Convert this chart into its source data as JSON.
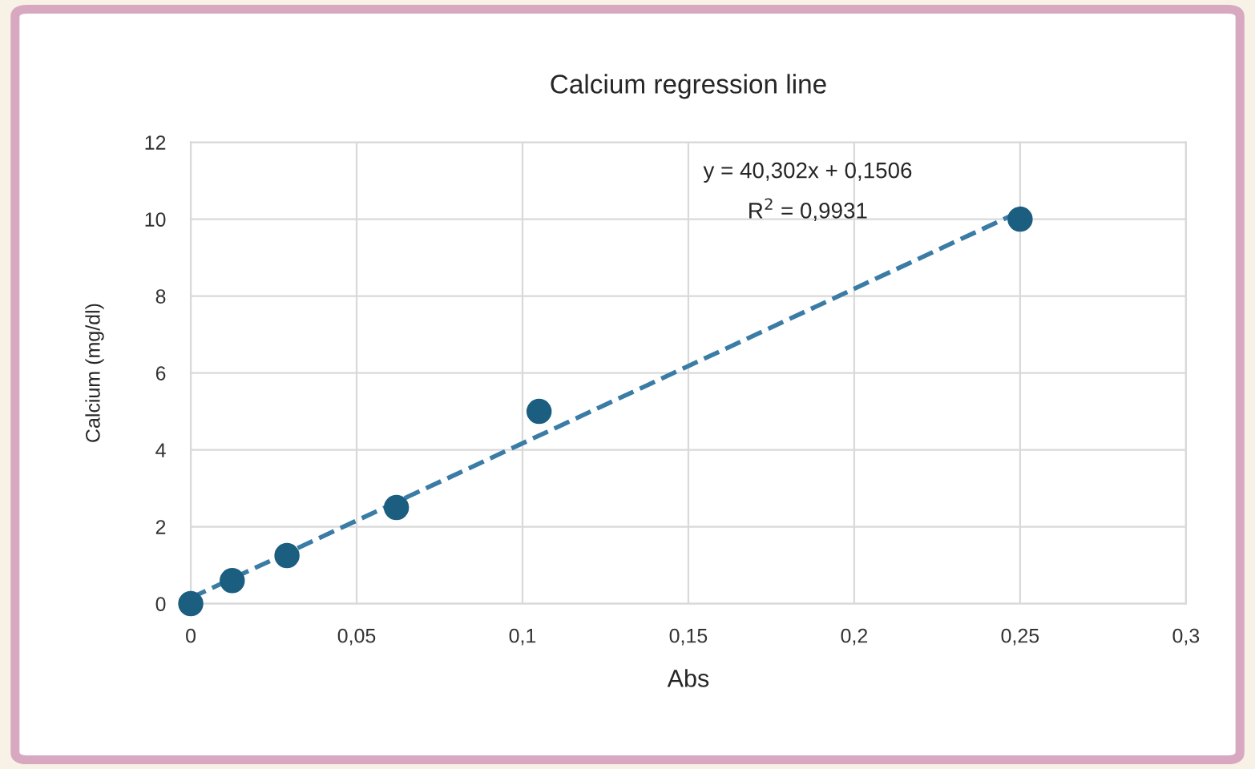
{
  "chart_data": {
    "type": "scatter",
    "title": "Calcium regression line",
    "xlabel": "Abs",
    "ylabel": "Calcium (mg/dl)",
    "series": [
      {
        "color": "#1b5e80",
        "x": [
          0,
          0.0125,
          0.029,
          0.062,
          0.105,
          0.25
        ],
        "values": [
          0,
          0.6,
          1.25,
          2.5,
          5,
          10
        ],
        "marker": "circle"
      },
      {
        "type": "line",
        "color": "#3a7ca5",
        "x": [
          0,
          0.25
        ],
        "values": [
          0.15,
          10.2
        ],
        "line_style": "dashed",
        "marker": "none"
      }
    ],
    "xlim": [
      0,
      0.3
    ],
    "xticks": [
      0,
      {
        "value": 0.05,
        "label": "0,05"
      },
      {
        "value": 0.1,
        "label": "0,1"
      },
      {
        "value": 0.15,
        "label": "0,15"
      },
      {
        "value": 0.2,
        "label": "0,2"
      },
      {
        "value": 0.25,
        "label": "0,25"
      },
      {
        "value": 0.3,
        "label": "0,3"
      }
    ],
    "ylim": [
      0,
      12
    ],
    "yticks": [
      0,
      2,
      4,
      6,
      8,
      10,
      12
    ],
    "grid": true,
    "legend": false,
    "annotations": [
      "y = 40,302x + 0,1506",
      "R$^{2}$ = 0,9931"
    ]
  }
}
